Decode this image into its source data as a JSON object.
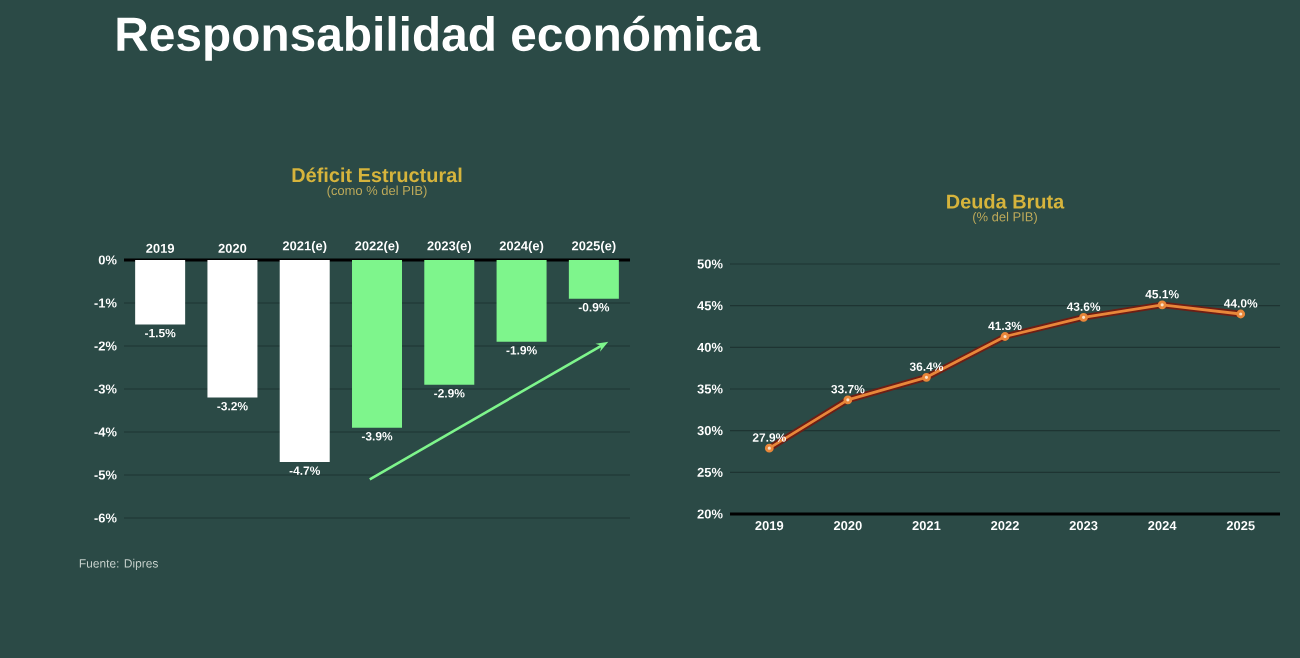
{
  "chart_data": [
    {
      "type": "bar",
      "title": "Déficit Estructural",
      "subtitle": "(como % del PIB)",
      "categories": [
        "2019",
        "2020",
        "2021(e)",
        "2022(e)",
        "2023(e)",
        "2024(e)",
        "2025(e)"
      ],
      "values": [
        -1.5,
        -3.2,
        -4.7,
        -3.9,
        -2.9,
        -1.9,
        -0.9
      ],
      "colors": [
        "#ffffff",
        "#ffffff",
        "#ffffff",
        "#7ef58c",
        "#7ef58c",
        "#7ef58c",
        "#7ef58c"
      ],
      "value_labels": [
        "-1.5%",
        "-3.2%",
        "-4.7%",
        "-3.9%",
        "-2.9%",
        "-1.9%",
        "-0.9%"
      ],
      "ylim": [
        -6,
        0
      ],
      "yticks": [
        {
          "value": 0,
          "label": "0%"
        },
        {
          "value": -1,
          "label": "-1%"
        },
        {
          "value": -2,
          "label": "-2%"
        },
        {
          "value": -3,
          "label": "-3%"
        },
        {
          "value": -4,
          "label": "-4%"
        },
        {
          "value": -5,
          "label": "-5%"
        },
        {
          "value": -6,
          "label": "-6%"
        }
      ],
      "grid": "y",
      "annotations": [
        "Responsabilidad económica",
        "Fuente: Dipres"
      ]
    },
    {
      "type": "line",
      "title": "Deuda Bruta",
      "subtitle": "(% del PIB)",
      "categories": [
        "2019",
        "2020",
        "2021",
        "2022",
        "2023",
        "2024",
        "2025"
      ],
      "values": [
        27.9,
        33.7,
        36.4,
        41.3,
        43.6,
        45.1,
        44.0
      ],
      "color": "#e8873a",
      "marker": "circle",
      "value_labels": [
        "27.9%",
        "33.7%",
        "36.4%",
        "41.3%",
        "43.6%",
        "45.1%",
        "44.0%"
      ],
      "ylim": [
        20,
        50
      ],
      "yticks": [
        {
          "value": 20,
          "label": "20%"
        },
        {
          "value": 25,
          "label": "25%"
        },
        {
          "value": 30,
          "label": "30%"
        },
        {
          "value": 35,
          "label": "35%"
        },
        {
          "value": 40,
          "label": "40%"
        },
        {
          "value": 45,
          "label": "45%"
        },
        {
          "value": 50,
          "label": "50%"
        }
      ],
      "grid": "y"
    }
  ]
}
